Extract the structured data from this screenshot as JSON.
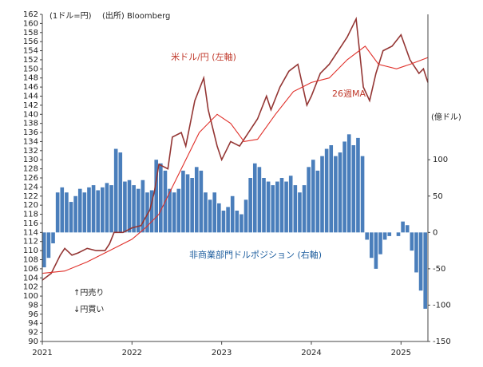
{
  "chart_data": {
    "type": "combo",
    "annotations": [
      "(1ドル=円)",
      "(出所) Bloomberg",
      "(億ドル)",
      "↑円売り",
      "↓円買い"
    ],
    "xlim": [
      2021,
      2025.3
    ],
    "xticks": [
      2021,
      2022,
      2023,
      2024,
      2025
    ],
    "ylim": [
      90,
      162
    ],
    "yticks": [
      90,
      92,
      94,
      96,
      98,
      100,
      102,
      104,
      106,
      108,
      110,
      112,
      114,
      116,
      118,
      120,
      122,
      124,
      126,
      128,
      130,
      132,
      134,
      136,
      138,
      140,
      142,
      144,
      146,
      148,
      150,
      152,
      154,
      156,
      158,
      160,
      162
    ],
    "y2lim": [
      -150,
      300
    ],
    "y2ticks": [
      -150,
      -100,
      -50,
      0,
      50,
      100
    ],
    "series": [
      {
        "name": "非商業部門ドルポジション (右軸)",
        "kind": "bar",
        "axis": "y2",
        "color": "#4a7ebb",
        "x": [
          2021.0,
          2021.05,
          2021.1,
          2021.15,
          2021.2,
          2021.25,
          2021.3,
          2021.35,
          2021.4,
          2021.45,
          2021.5,
          2021.55,
          2021.6,
          2021.65,
          2021.7,
          2021.75,
          2021.8,
          2021.85,
          2021.9,
          2021.95,
          2022.0,
          2022.05,
          2022.1,
          2022.15,
          2022.2,
          2022.25,
          2022.3,
          2022.35,
          2022.4,
          2022.45,
          2022.5,
          2022.55,
          2022.6,
          2022.65,
          2022.7,
          2022.75,
          2022.8,
          2022.85,
          2022.9,
          2022.95,
          2023.0,
          2023.05,
          2023.1,
          2023.15,
          2023.2,
          2023.25,
          2023.3,
          2023.35,
          2023.4,
          2023.45,
          2023.5,
          2023.55,
          2023.6,
          2023.65,
          2023.7,
          2023.75,
          2023.8,
          2023.85,
          2023.9,
          2023.95,
          2024.0,
          2024.05,
          2024.1,
          2024.15,
          2024.2,
          2024.25,
          2024.3,
          2024.35,
          2024.4,
          2024.45,
          2024.5,
          2024.55,
          2024.6,
          2024.65,
          2024.7,
          2024.75,
          2024.8,
          2024.85,
          2024.9,
          2024.95,
          2025.0,
          2025.05,
          2025.1,
          2025.15,
          2025.2,
          2025.25
        ],
        "values": [
          -48,
          -35,
          -15,
          55,
          62,
          55,
          42,
          50,
          60,
          55,
          62,
          65,
          58,
          62,
          68,
          65,
          115,
          110,
          70,
          72,
          65,
          60,
          72,
          55,
          58,
          100,
          95,
          85,
          60,
          55,
          60,
          85,
          80,
          75,
          90,
          85,
          55,
          45,
          55,
          40,
          30,
          35,
          50,
          30,
          25,
          45,
          75,
          95,
          90,
          75,
          70,
          65,
          70,
          75,
          70,
          78,
          65,
          55,
          65,
          90,
          100,
          85,
          105,
          115,
          120,
          105,
          110,
          125,
          135,
          120,
          130,
          105,
          -10,
          -35,
          -50,
          -30,
          -10,
          -5,
          0,
          -5,
          15,
          10,
          -25,
          -55,
          -80,
          -105
        ]
      },
      {
        "name": "米ドル/円 (左軸)",
        "kind": "line",
        "axis": "y",
        "color": "#943634",
        "x": [
          2021.0,
          2021.1,
          2021.2,
          2021.25,
          2021.33,
          2021.4,
          2021.5,
          2021.6,
          2021.7,
          2021.75,
          2021.8,
          2021.9,
          2022.0,
          2022.1,
          2022.2,
          2022.25,
          2022.3,
          2022.4,
          2022.45,
          2022.55,
          2022.6,
          2022.7,
          2022.8,
          2022.85,
          2022.95,
          2023.0,
          2023.1,
          2023.2,
          2023.3,
          2023.4,
          2023.5,
          2023.55,
          2023.65,
          2023.75,
          2023.85,
          2023.95,
          2024.0,
          2024.1,
          2024.2,
          2024.3,
          2024.4,
          2024.5,
          2024.58,
          2024.65,
          2024.72,
          2024.8,
          2024.9,
          2025.0,
          2025.1,
          2025.2,
          2025.25,
          2025.3
        ],
        "values": [
          103.5,
          105,
          109,
          110.5,
          109,
          109.5,
          110.5,
          110,
          110,
          111.5,
          114,
          114,
          115,
          115.5,
          119,
          123,
          129,
          128,
          135,
          136,
          133,
          143,
          148,
          141,
          133,
          130,
          134,
          133,
          136,
          139,
          144,
          141,
          146,
          149.5,
          151,
          142,
          144,
          149,
          151,
          154,
          157,
          161,
          146,
          143,
          149,
          154,
          155,
          157.5,
          152,
          149,
          150,
          147
        ]
      },
      {
        "name": "26週MA",
        "kind": "line",
        "axis": "y",
        "color": "#e0302a",
        "x": [
          2021.0,
          2021.25,
          2021.5,
          2021.75,
          2022.0,
          2022.15,
          2022.3,
          2022.5,
          2022.75,
          2022.95,
          2023.1,
          2023.25,
          2023.4,
          2023.6,
          2023.8,
          2024.0,
          2024.2,
          2024.4,
          2024.6,
          2024.75,
          2024.95,
          2025.1,
          2025.3
        ],
        "values": [
          105,
          105.5,
          107.5,
          110,
          112.5,
          115,
          118,
          126,
          136,
          140,
          138,
          134,
          134.5,
          140,
          145,
          147,
          148,
          152,
          155,
          151,
          150,
          151,
          152.5
        ]
      }
    ]
  }
}
